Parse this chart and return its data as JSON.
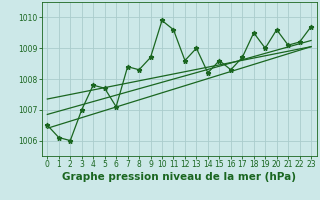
{
  "xlabel": "Graphe pression niveau de la mer (hPa)",
  "ylabel": "",
  "bg_color": "#cce8e8",
  "plot_bg_color": "#cce8e8",
  "grid_color": "#aacccc",
  "line_color": "#1a6620",
  "marker_color": "#1a6620",
  "xlim": [
    -0.5,
    23.5
  ],
  "ylim": [
    1005.5,
    1010.5
  ],
  "yticks": [
    1006,
    1007,
    1008,
    1009,
    1010
  ],
  "xticks": [
    0,
    1,
    2,
    3,
    4,
    5,
    6,
    7,
    8,
    9,
    10,
    11,
    12,
    13,
    14,
    15,
    16,
    17,
    18,
    19,
    20,
    21,
    22,
    23
  ],
  "x_data": [
    0,
    1,
    2,
    3,
    4,
    5,
    6,
    7,
    8,
    9,
    10,
    11,
    12,
    13,
    14,
    15,
    16,
    17,
    18,
    19,
    20,
    21,
    22,
    23
  ],
  "y_data": [
    1006.5,
    1006.1,
    1006.0,
    1007.0,
    1007.8,
    1007.7,
    1007.1,
    1008.4,
    1008.3,
    1008.7,
    1009.9,
    1009.6,
    1008.6,
    1009.0,
    1008.2,
    1008.6,
    1008.3,
    1008.7,
    1009.5,
    1009.0,
    1009.6,
    1009.1,
    1009.2,
    1009.7
  ],
  "trend1_x": [
    0,
    23
  ],
  "trend1_y": [
    1006.4,
    1009.05
  ],
  "trend2_x": [
    0,
    23
  ],
  "trend2_y": [
    1006.85,
    1009.25
  ],
  "trend3_x": [
    0,
    23
  ],
  "trend3_y": [
    1007.35,
    1009.05
  ],
  "xlabel_fontsize": 7.5,
  "tick_fontsize": 5.5
}
